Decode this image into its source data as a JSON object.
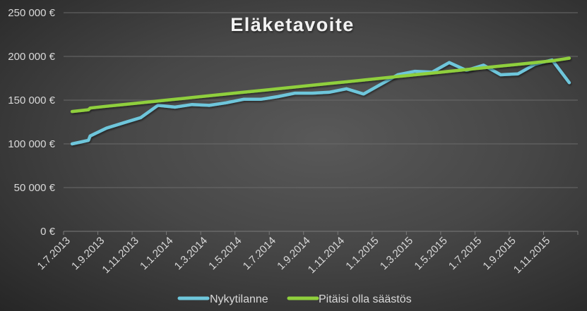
{
  "chart_data": {
    "type": "line",
    "title": "Eläketavoite",
    "xlabel": "",
    "ylabel": "",
    "ylim": [
      0,
      250000
    ],
    "y_ticks": [
      "0 €",
      "50 000 €",
      "100 000 €",
      "150 000 €",
      "200 000 €",
      "250 000 €"
    ],
    "y_tick_values": [
      0,
      50000,
      100000,
      150000,
      200000,
      250000
    ],
    "x_tick_labels": [
      "1.7.2013",
      "1.9.2013",
      "1.11.2013",
      "1.1.2014",
      "1.3.2014",
      "1.5.2014",
      "1.7.2014",
      "1.9.2014",
      "1.11.2014",
      "1.1.2015",
      "1.3.2015",
      "1.5.2015",
      "1.7.2015",
      "1.9.2015",
      "1.11.2015"
    ],
    "grid": true,
    "legend_position": "bottom",
    "x": [
      "7.2013",
      "8.2013",
      "8.2013b",
      "9.2013",
      "10.2013",
      "11.2013",
      "12.2013",
      "1.2014",
      "2.2014",
      "3.2014",
      "4.2014",
      "5.2014",
      "6.2014",
      "7.2014",
      "8.2014",
      "9.2014",
      "10.2014",
      "11.2014",
      "12.2014",
      "1.2015",
      "2.2015",
      "3.2015",
      "4.2015",
      "5.2015",
      "6.2015",
      "7.2015",
      "8.2015",
      "9.2015",
      "10.2015",
      "11.2015",
      "12.2015"
    ],
    "x_pos": [
      0,
      0.95,
      1.05,
      2,
      3,
      4,
      5,
      6,
      7,
      8,
      9,
      10,
      11,
      12,
      13,
      14,
      15,
      16,
      17,
      18,
      19,
      20,
      21,
      22,
      23,
      24,
      25,
      26,
      27,
      28,
      29
    ],
    "series": [
      {
        "name": "Nykytilanne",
        "color": "#6ec6db",
        "values": [
          100000,
          104000,
          109000,
          118000,
          124000,
          130000,
          144000,
          142000,
          145000,
          144000,
          147000,
          151000,
          151000,
          154000,
          158000,
          158000,
          159000,
          163000,
          157000,
          168000,
          179000,
          183000,
          182000,
          193000,
          184000,
          190000,
          179000,
          180000,
          191000,
          196000,
          170000
        ]
      },
      {
        "name": "Pitäisi olla säästös",
        "color": "#8fcf3c",
        "values": [
          137000,
          139000,
          141000,
          143000,
          145000,
          147000,
          149000,
          151000,
          153000,
          155000,
          157000,
          159000,
          161000,
          163000,
          165000,
          167000,
          169000,
          171000,
          173000,
          175000,
          177000,
          179000,
          181000,
          183000,
          185000,
          187000,
          189000,
          191000,
          193000,
          195000,
          198000
        ]
      }
    ]
  },
  "legend": {
    "items": [
      {
        "label": "Nykytilanne",
        "color": "#6ec6db"
      },
      {
        "label": "Pitäisi olla säästös",
        "color": "#8fcf3c"
      }
    ]
  }
}
